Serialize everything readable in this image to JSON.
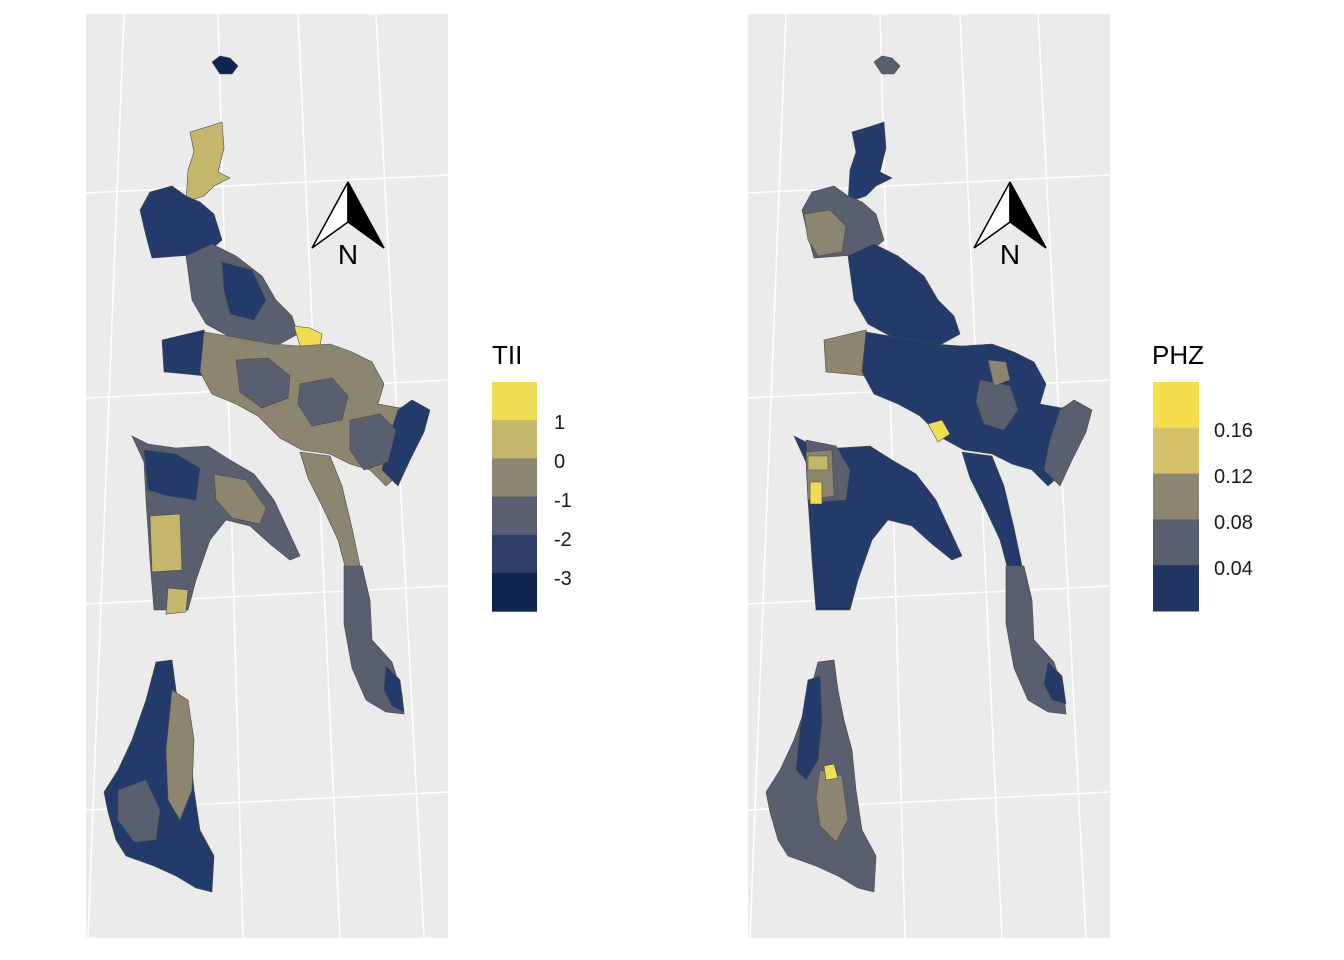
{
  "colors": {
    "panel_bg": "#ebebeb",
    "grid": "#ffffff",
    "region_stroke": "#4a4a4a",
    "c1": "#0f2650",
    "c2": "#233b6a",
    "c3": "#5a5f70",
    "c4": "#8c8670",
    "c5": "#c4b66a",
    "c6": "#f0dc52"
  },
  "maps": [
    {
      "legend": {
        "title": "TII",
        "labels": [
          "1",
          "0",
          "-1",
          "-2",
          "-3"
        ],
        "swatch_colors": [
          "#f0dc52",
          "#c4b66a",
          "#8c8670",
          "#5a5f70",
          "#2f3f68",
          "#0f2650"
        ]
      },
      "north": {
        "letter": "N",
        "icon": "north-arrow-icon"
      }
    },
    {
      "legend": {
        "title": "PHZ",
        "labels": [
          "0.16",
          "0.12",
          "0.08",
          "0.04"
        ],
        "swatch_colors": [
          "#f4de4e",
          "#d4c16a",
          "#8c8670",
          "#5a5f70",
          "#213664"
        ]
      },
      "north": {
        "letter": "N",
        "icon": "north-arrow-icon"
      }
    }
  ]
}
